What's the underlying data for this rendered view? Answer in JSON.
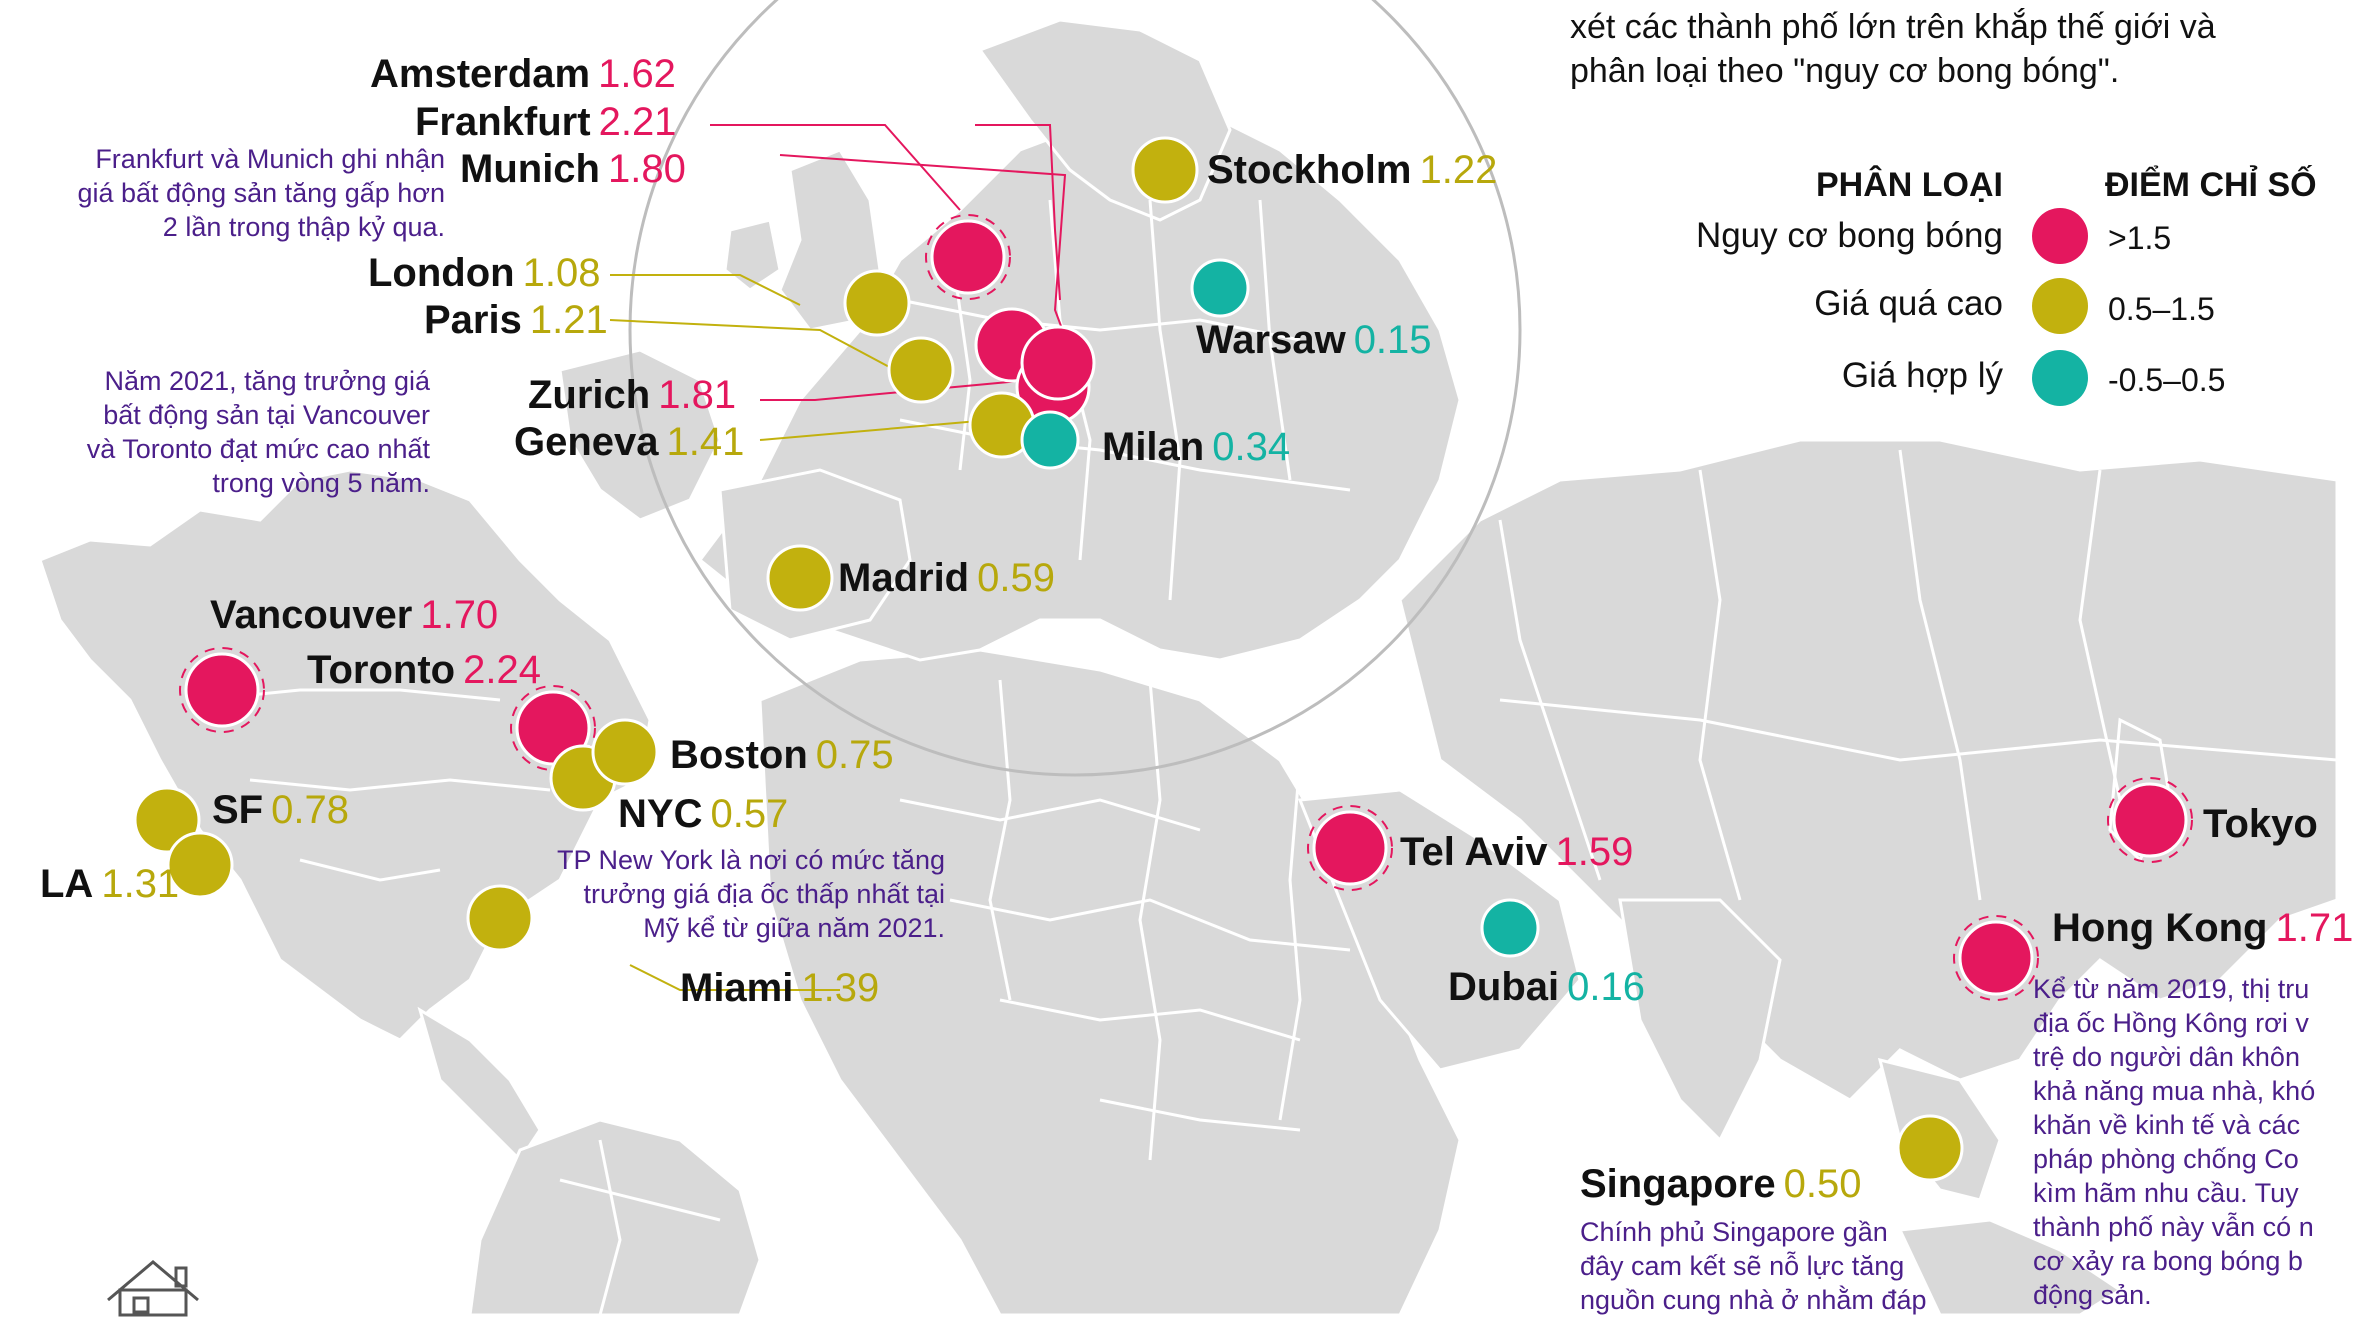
{
  "intro": {
    "lines": [
      "xét các thành phố lớn trên khắp thế giới và",
      "phân loại theo \"nguy cơ bong bóng\"."
    ]
  },
  "legend": {
    "category_header": "PHÂN LOẠI",
    "score_header": "ĐIỂM CHỈ SỐ",
    "items": [
      {
        "category": "Nguy cơ bong bóng",
        "range": ">1.5",
        "color": "#e4175e"
      },
      {
        "category": "Giá quá cao",
        "range": "0.5–1.5",
        "color": "#c2b10e"
      },
      {
        "category": "Giá hợp lý",
        "range": "-0.5–0.5",
        "color": "#14b3a3"
      }
    ]
  },
  "colors": {
    "bubble": "#e4175e",
    "overvalued": "#c2b10e",
    "fair": "#14b3a3",
    "land": "#d9d9d9",
    "border": "#ffffff",
    "note": "#4b1f8a"
  },
  "cities": {
    "amsterdam": {
      "name": "Amsterdam",
      "score": "1.62"
    },
    "frankfurt": {
      "name": "Frankfurt",
      "score": "2.21"
    },
    "munich": {
      "name": "Munich",
      "score": "1.80"
    },
    "london": {
      "name": "London",
      "score": "1.08"
    },
    "paris": {
      "name": "Paris",
      "score": "1.21"
    },
    "zurich": {
      "name": "Zurich",
      "score": "1.81"
    },
    "geneva": {
      "name": "Geneva",
      "score": "1.41"
    },
    "stockholm": {
      "name": "Stockholm",
      "score": "1.22"
    },
    "warsaw": {
      "name": "Warsaw",
      "score": "0.15"
    },
    "milan": {
      "name": "Milan",
      "score": "0.34"
    },
    "madrid": {
      "name": "Madrid",
      "score": "0.59"
    },
    "vancouver": {
      "name": "Vancouver",
      "score": "1.70"
    },
    "toronto": {
      "name": "Toronto",
      "score": "2.24"
    },
    "boston": {
      "name": "Boston",
      "score": "0.75"
    },
    "nyc": {
      "name": "NYC",
      "score": "0.57"
    },
    "sf": {
      "name": "SF",
      "score": "0.78"
    },
    "la": {
      "name": "LA",
      "score": "1.31"
    },
    "miami": {
      "name": "Miami",
      "score": "1.39"
    },
    "telaviv": {
      "name": "Tel Aviv",
      "score": "1.59"
    },
    "dubai": {
      "name": "Dubai",
      "score": "0.16"
    },
    "tokyo": {
      "name": "Tokyo",
      "score": ""
    },
    "hongkong": {
      "name": "Hong Kong",
      "score": "1.71"
    },
    "singapore": {
      "name": "Singapore",
      "score": "0.50"
    }
  },
  "notes": {
    "frankfurt_munich": [
      "Frankfurt và Munich ghi nhận",
      "giá bất động sản tăng gấp hơn",
      "2 lần trong thập kỷ qua."
    ],
    "canada": [
      "Năm 2021, tăng trưởng giá",
      "bất động sản tại Vancouver",
      "và Toronto đạt mức cao nhất",
      "trong vòng 5 năm."
    ],
    "nyc": [
      "TP New York là nơi có mức tăng",
      "trưởng giá địa ốc thấp nhất tại",
      "Mỹ kể từ giữa năm 2021."
    ],
    "hongkong": [
      "Kể từ năm 2019, thị tru",
      "địa ốc Hồng Kông rơi v",
      "trệ do người dân khôn",
      "khả năng mua nhà, khó",
      "khăn về kinh tế và các",
      "pháp phòng chống Co",
      "kìm hãm nhu cầu. Tuy",
      "thành phố này vẫn có n",
      "cơ xảy ra bong bóng b",
      "động sản."
    ],
    "singapore": [
      "Chính phủ Singapore gần",
      "đây cam kết sẽ nỗ lực tăng",
      "nguồn cung nhà ở nhằm đáp"
    ]
  }
}
